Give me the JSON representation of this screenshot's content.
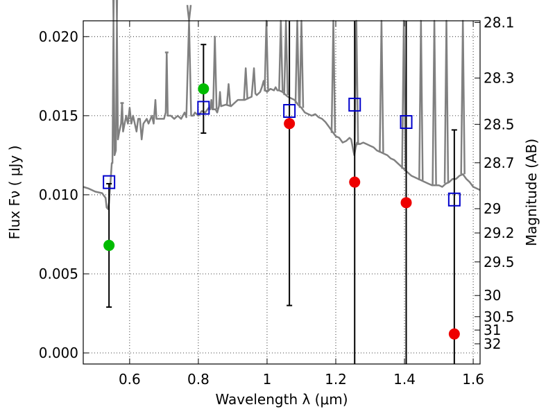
{
  "chart_data": {
    "type": "scatter",
    "xlabel": "Wavelength  λ (μm)",
    "ylabel": "Flux  Fν  ( μJy )",
    "ylabel_right": "Magnitude (AB)",
    "xlim": [
      0.465,
      1.62
    ],
    "ylim": [
      -0.0007,
      0.021
    ],
    "grid": true,
    "x_ticks": [
      0.6,
      0.8,
      1.0,
      1.2,
      1.4,
      1.6
    ],
    "x_tick_labels": [
      "0.6",
      "0.8",
      "1",
      "1.2",
      "1.4",
      "1.6"
    ],
    "y_ticks": [
      0.0,
      0.005,
      0.01,
      0.015,
      0.02
    ],
    "y_tick_labels": [
      "0.000",
      "0.005",
      "0.010",
      "0.015",
      "0.020"
    ],
    "mag_ticks": [
      28.1,
      28.3,
      28.5,
      28.7,
      29,
      29.2,
      29.5,
      30,
      30.5,
      31,
      32
    ],
    "mag_tick_labels": [
      "28.1",
      "28.3",
      "28.5",
      "28.7",
      "29",
      "29.2",
      "29.5",
      "30",
      "30.5",
      "31",
      "32"
    ],
    "colors": {
      "spectrum": "#808080",
      "model": "#0000cc",
      "green": "#00bb00",
      "red": "#ee0000",
      "error": "#000000"
    },
    "observed_green": [
      {
        "x": 0.54,
        "y": 0.0068,
        "yerr_low": 0.0029,
        "yerr_high": 0.0107
      },
      {
        "x": 0.815,
        "y": 0.0167,
        "yerr_low": 0.0139,
        "yerr_high": 0.0195
      }
    ],
    "observed_red": [
      {
        "x": 1.065,
        "y": 0.0145,
        "yerr_low": 0.003,
        "yerr_high": 0.021
      },
      {
        "x": 1.255,
        "y": 0.0108,
        "yerr_low": -0.0007,
        "yerr_high": 0.021
      },
      {
        "x": 1.405,
        "y": 0.0095,
        "yerr_low": -0.0007,
        "yerr_high": 0.021
      },
      {
        "x": 1.545,
        "y": 0.0012,
        "yerr_low": -0.0007,
        "yerr_high": 0.0141
      }
    ],
    "model_photometry": [
      {
        "x": 0.54,
        "y": 0.0108
      },
      {
        "x": 0.815,
        "y": 0.0155
      },
      {
        "x": 1.065,
        "y": 0.0153
      },
      {
        "x": 1.255,
        "y": 0.0157
      },
      {
        "x": 1.405,
        "y": 0.0146
      },
      {
        "x": 1.545,
        "y": 0.0097
      }
    ],
    "spectrum": [
      [
        0.465,
        0.0105
      ],
      [
        0.48,
        0.0104
      ],
      [
        0.5,
        0.0102
      ],
      [
        0.52,
        0.0101
      ],
      [
        0.53,
        0.0098
      ],
      [
        0.533,
        0.0092
      ],
      [
        0.537,
        0.0091
      ],
      [
        0.54,
        0.0095
      ],
      [
        0.545,
        0.011
      ],
      [
        0.548,
        0.012
      ],
      [
        0.55,
        0.012
      ],
      [
        0.553,
        0.03
      ],
      [
        0.556,
        0.0125
      ],
      [
        0.56,
        0.0128
      ],
      [
        0.563,
        0.03
      ],
      [
        0.566,
        0.0135
      ],
      [
        0.57,
        0.014
      ],
      [
        0.575,
        0.0145
      ],
      [
        0.578,
        0.0158
      ],
      [
        0.581,
        0.014
      ],
      [
        0.59,
        0.015
      ],
      [
        0.595,
        0.0145
      ],
      [
        0.6,
        0.0155
      ],
      [
        0.605,
        0.0145
      ],
      [
        0.61,
        0.015
      ],
      [
        0.615,
        0.0145
      ],
      [
        0.62,
        0.014
      ],
      [
        0.625,
        0.0148
      ],
      [
        0.63,
        0.0148
      ],
      [
        0.635,
        0.0135
      ],
      [
        0.64,
        0.0145
      ],
      [
        0.65,
        0.0148
      ],
      [
        0.655,
        0.0145
      ],
      [
        0.665,
        0.015
      ],
      [
        0.67,
        0.0145
      ],
      [
        0.675,
        0.016
      ],
      [
        0.678,
        0.0148
      ],
      [
        0.69,
        0.0148
      ],
      [
        0.7,
        0.0148
      ],
      [
        0.705,
        0.0152
      ],
      [
        0.708,
        0.019
      ],
      [
        0.711,
        0.015
      ],
      [
        0.72,
        0.015
      ],
      [
        0.73,
        0.0148
      ],
      [
        0.74,
        0.015
      ],
      [
        0.75,
        0.0148
      ],
      [
        0.76,
        0.0152
      ],
      [
        0.765,
        0.0149
      ],
      [
        0.773,
        0.022
      ],
      [
        0.779,
        0.015
      ],
      [
        0.785,
        0.015
      ],
      [
        0.79,
        0.0152
      ],
      [
        0.8,
        0.015
      ],
      [
        0.81,
        0.0153
      ],
      [
        0.82,
        0.0152
      ],
      [
        0.83,
        0.0155
      ],
      [
        0.835,
        0.0154
      ],
      [
        0.838,
        0.016
      ],
      [
        0.841,
        0.0154
      ],
      [
        0.85,
        0.0154
      ],
      [
        0.855,
        0.0152
      ],
      [
        0.86,
        0.0156
      ],
      [
        0.863,
        0.0165
      ],
      [
        0.866,
        0.0156
      ],
      [
        0.88,
        0.0157
      ],
      [
        0.895,
        0.0156
      ],
      [
        0.905,
        0.0158
      ],
      [
        0.915,
        0.016
      ],
      [
        0.925,
        0.016
      ],
      [
        0.935,
        0.016
      ],
      [
        0.945,
        0.0161
      ],
      [
        0.955,
        0.0162
      ],
      [
        0.962,
        0.018
      ],
      [
        0.966,
        0.0164
      ],
      [
        0.97,
        0.0163
      ],
      [
        0.98,
        0.0165
      ],
      [
        0.985,
        0.0168
      ],
      [
        0.99,
        0.0172
      ],
      [
        0.995,
        0.0166
      ],
      [
        1.0,
        0.0165
      ],
      [
        1.01,
        0.0167
      ],
      [
        1.02,
        0.0166
      ],
      [
        1.025,
        0.0168
      ],
      [
        1.03,
        0.0166
      ],
      [
        1.035,
        0.0166
      ],
      [
        1.045,
        0.0165
      ],
      [
        1.05,
        0.0164
      ],
      [
        1.06,
        0.0162
      ],
      [
        1.07,
        0.0161
      ],
      [
        1.08,
        0.016
      ],
      [
        1.09,
        0.0157
      ],
      [
        1.1,
        0.0155
      ],
      [
        1.11,
        0.0152
      ],
      [
        1.12,
        0.0151
      ],
      [
        1.13,
        0.015
      ],
      [
        1.14,
        0.0151
      ],
      [
        1.15,
        0.0149
      ],
      [
        1.16,
        0.0148
      ],
      [
        1.17,
        0.0146
      ],
      [
        1.18,
        0.0143
      ],
      [
        1.19,
        0.014
      ],
      [
        1.2,
        0.0137
      ],
      [
        1.21,
        0.0136
      ],
      [
        1.22,
        0.0133
      ],
      [
        1.23,
        0.0134
      ],
      [
        1.24,
        0.0136
      ],
      [
        1.245,
        0.0135
      ],
      [
        1.25,
        0.0129
      ],
      [
        1.254,
        0.0125
      ],
      [
        1.258,
        0.013
      ],
      [
        1.262,
        0.0133
      ],
      [
        1.27,
        0.0132
      ],
      [
        1.28,
        0.0133
      ],
      [
        1.29,
        0.0132
      ],
      [
        1.3,
        0.0131
      ],
      [
        1.31,
        0.013
      ],
      [
        1.32,
        0.0128
      ],
      [
        1.33,
        0.0127
      ],
      [
        1.34,
        0.0126
      ],
      [
        1.35,
        0.0125
      ],
      [
        1.36,
        0.0123
      ],
      [
        1.37,
        0.0122
      ],
      [
        1.38,
        0.012
      ],
      [
        1.39,
        0.0118
      ],
      [
        1.4,
        0.0116
      ],
      [
        1.41,
        0.0114
      ],
      [
        1.42,
        0.0112
      ],
      [
        1.43,
        0.0111
      ],
      [
        1.44,
        0.011
      ],
      [
        1.45,
        0.0109
      ],
      [
        1.46,
        0.0108
      ],
      [
        1.47,
        0.0107
      ],
      [
        1.48,
        0.0106
      ],
      [
        1.49,
        0.0106
      ],
      [
        1.5,
        0.0106
      ],
      [
        1.51,
        0.0105
      ],
      [
        1.52,
        0.0107
      ],
      [
        1.53,
        0.0108
      ],
      [
        1.54,
        0.011
      ],
      [
        1.55,
        0.011
      ],
      [
        1.56,
        0.0112
      ],
      [
        1.57,
        0.0113
      ],
      [
        1.58,
        0.011
      ],
      [
        1.59,
        0.0108
      ],
      [
        1.6,
        0.0105
      ],
      [
        1.61,
        0.0104
      ],
      [
        1.62,
        0.0103
      ]
    ],
    "emission_lines": [
      {
        "x": 0.553,
        "peak": 0.03
      },
      {
        "x": 0.563,
        "peak": 0.03
      },
      {
        "x": 0.578,
        "peak": 0.0158
      },
      {
        "x": 0.708,
        "peak": 0.019
      },
      {
        "x": 0.773,
        "peak": 0.0225
      },
      {
        "x": 0.848,
        "peak": 0.02
      },
      {
        "x": 0.888,
        "peak": 0.017
      },
      {
        "x": 0.938,
        "peak": 0.018
      },
      {
        "x": 0.998,
        "peak": 0.03
      },
      {
        "x": 1.04,
        "peak": 0.03
      },
      {
        "x": 1.055,
        "peak": 0.03
      },
      {
        "x": 1.088,
        "peak": 0.03
      },
      {
        "x": 1.1,
        "peak": 0.03
      },
      {
        "x": 1.193,
        "peak": 0.03
      },
      {
        "x": 1.26,
        "peak": 0.03
      },
      {
        "x": 1.333,
        "peak": 0.03
      },
      {
        "x": 1.398,
        "peak": 0.03
      },
      {
        "x": 1.448,
        "peak": 0.03
      },
      {
        "x": 1.487,
        "peak": 0.03
      },
      {
        "x": 1.522,
        "peak": 0.03
      },
      {
        "x": 1.57,
        "peak": 0.03
      }
    ]
  }
}
